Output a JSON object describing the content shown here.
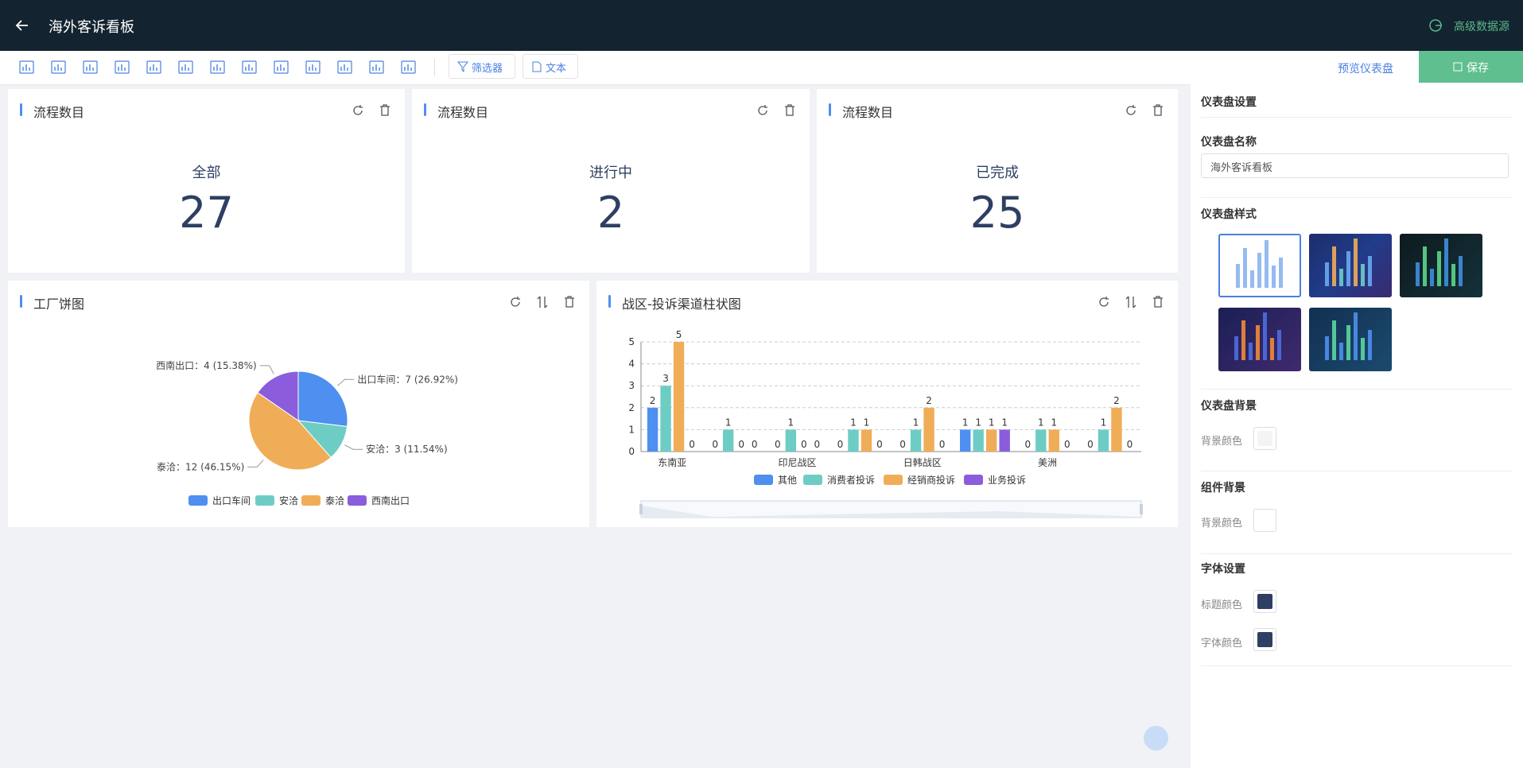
{
  "header": {
    "title": "海外客诉看板",
    "data_source": "高级数据源"
  },
  "toolbar": {
    "filter": "筛选器",
    "text": "文本",
    "preview": "预览仪表盘",
    "save": "保存"
  },
  "kpis": [
    {
      "title": "流程数目",
      "label": "全部",
      "value": 27
    },
    {
      "title": "流程数目",
      "label": "进行中",
      "value": 2
    },
    {
      "title": "流程数目",
      "label": "已完成",
      "value": 25
    }
  ],
  "chart_data": [
    {
      "type": "pie",
      "title": "工厂饼图",
      "categories": [
        "出口车间",
        "安洽",
        "泰洽",
        "西南出口"
      ],
      "values": [
        7,
        3,
        12,
        4
      ],
      "value_labels": [
        "出口车间：7 (26.92%)",
        "安洽：3 (11.54%)",
        "泰洽：12 (46.15%)",
        "西南出口：4 (15.38%)"
      ],
      "colors": [
        "#4e8ff0",
        "#6dcdc5",
        "#f0ad57",
        "#8b5ddc"
      ]
    },
    {
      "type": "bar",
      "title": "战区-投诉渠道柱状图",
      "categories": [
        "东南亚",
        null,
        "印尼战区",
        null,
        "日韩战区",
        null,
        "美洲",
        null
      ],
      "series": [
        {
          "name": "其他",
          "color": "#4e8ff0",
          "values": [
            2,
            0,
            0,
            0,
            0,
            1,
            0,
            0
          ]
        },
        {
          "name": "消费者投诉",
          "color": "#6dcdc5",
          "values": [
            3,
            1,
            1,
            1,
            1,
            1,
            1,
            1
          ]
        },
        {
          "name": "经销商投诉",
          "color": "#f0ad57",
          "values": [
            5,
            0,
            0,
            1,
            2,
            1,
            1,
            2
          ]
        },
        {
          "name": "业务投诉",
          "color": "#8b5ddc",
          "values": [
            0,
            0,
            0,
            0,
            0,
            1,
            0,
            0
          ]
        }
      ],
      "ylim": [
        0,
        5
      ],
      "yticks": [
        0,
        1,
        2,
        3,
        4,
        5
      ],
      "grid": true
    }
  ],
  "sidebar": {
    "title": "仪表盘设置",
    "name_label": "仪表盘名称",
    "name_value": "海外客诉看板",
    "style_label": "仪表盘样式",
    "background": {
      "title": "仪表盘背景",
      "label": "背景颜色",
      "color": "#f3f4f6"
    },
    "component_background": {
      "title": "组件背景",
      "label": "背景颜色",
      "color": "#ffffff"
    },
    "font": {
      "title": "字体设置",
      "title_color_label": "标题颜色",
      "title_color": "#2e3f63",
      "text_color_label": "字体颜色",
      "text_color": "#2e3f63"
    }
  }
}
